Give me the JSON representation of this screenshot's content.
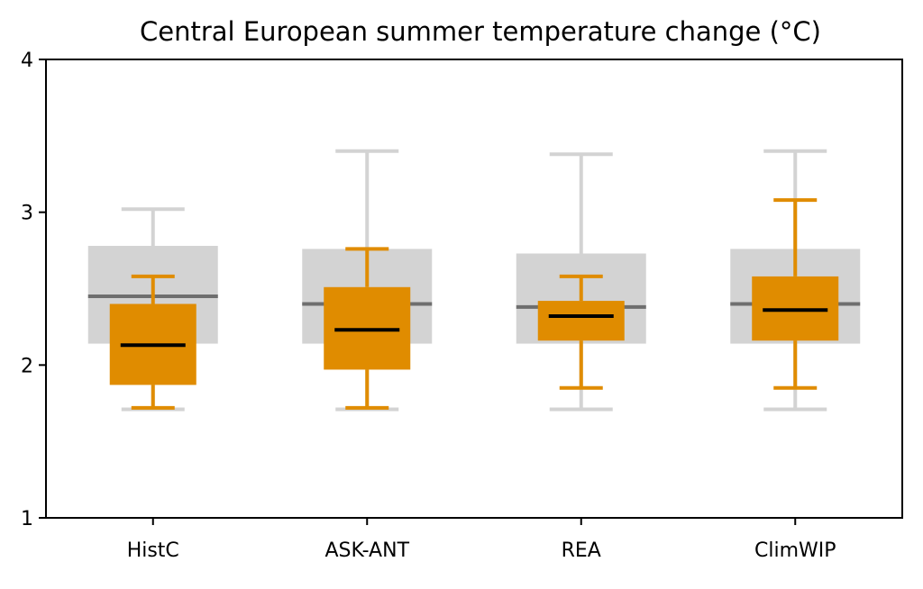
{
  "chart_data": {
    "type": "boxplot",
    "title": "Central European summer temperature change (°C)",
    "xlabel": "",
    "ylabel": "",
    "ylim": [
      1,
      4
    ],
    "yticks": [
      1,
      2,
      3,
      4
    ],
    "categories": [
      "HistC",
      "ASK-ANT",
      "REA",
      "ClimWIP"
    ],
    "grid": false,
    "colors": {
      "weighted": "#e08c00",
      "weighted_median": "#000000",
      "unweighted": "#d3d3d3",
      "unweighted_median": "#6e6e6e"
    },
    "series": [
      {
        "role": "unweighted",
        "boxes": [
          {
            "whisker_low": 1.71,
            "q1": 2.14,
            "median": 2.45,
            "q3": 2.78,
            "whisker_high": 3.02
          },
          {
            "whisker_low": 1.71,
            "q1": 2.14,
            "median": 2.4,
            "q3": 2.76,
            "whisker_high": 3.4
          },
          {
            "whisker_low": 1.71,
            "q1": 2.14,
            "median": 2.38,
            "q3": 2.73,
            "whisker_high": 3.38
          },
          {
            "whisker_low": 1.71,
            "q1": 2.14,
            "median": 2.4,
            "q3": 2.76,
            "whisker_high": 3.4
          }
        ]
      },
      {
        "role": "weighted",
        "boxes": [
          {
            "whisker_low": 1.72,
            "q1": 1.87,
            "median": 2.13,
            "q3": 2.4,
            "whisker_high": 2.58
          },
          {
            "whisker_low": 1.72,
            "q1": 1.97,
            "median": 2.23,
            "q3": 2.51,
            "whisker_high": 2.76
          },
          {
            "whisker_low": 1.85,
            "q1": 2.16,
            "median": 2.32,
            "q3": 2.42,
            "whisker_high": 2.58
          },
          {
            "whisker_low": 1.85,
            "q1": 2.16,
            "median": 2.36,
            "q3": 2.58,
            "whisker_high": 3.08
          }
        ]
      }
    ]
  }
}
